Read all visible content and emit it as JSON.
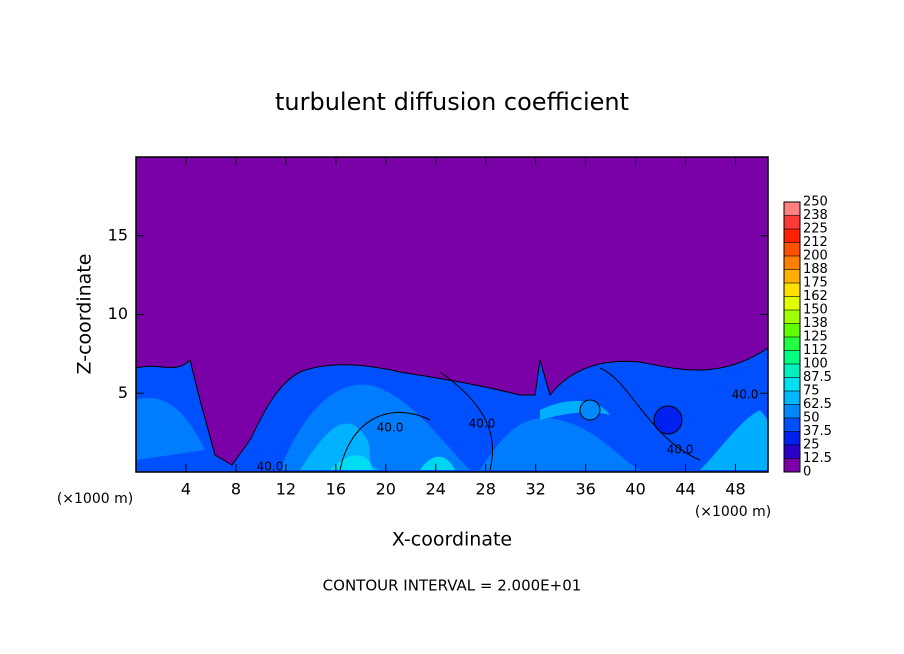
{
  "chart_data": {
    "type": "contour",
    "title": "turbulent diffusion coefficient",
    "x_label": "X-coordinate",
    "y_label": "Z-coordinate",
    "x_unit": "(×1000 m)",
    "footer": "CONTOUR INTERVAL = 2.000E+01",
    "xlim": [
      0,
      50.6
    ],
    "ylim": [
      0,
      20
    ],
    "xticks": [
      4,
      8,
      12,
      16,
      20,
      24,
      28,
      32,
      36,
      40,
      44,
      48
    ],
    "yticks": [
      5,
      10,
      15
    ],
    "background_color": "#7a00a8",
    "contour_labels": [
      "40.0",
      "40.0",
      "40.0",
      "40.0",
      "40.0"
    ],
    "levels": [
      0,
      12.5,
      25,
      37.5,
      50,
      62.5,
      75,
      87.5,
      100,
      {
        "value": 112.5,
        "label": "112"
      },
      125,
      {
        "value": 137.5,
        "label": "138"
      },
      150,
      {
        "value": 162.5,
        "label": "162"
      },
      175,
      {
        "value": 187.5,
        "label": "188"
      },
      200,
      {
        "value": 212.5,
        "label": "212"
      },
      225,
      {
        "value": 237.5,
        "label": "238"
      },
      250
    ],
    "level_colors": [
      "#7a00a8",
      "#2a00c8",
      "#0020f0",
      "#0050ff",
      "#0088ff",
      "#00b8ff",
      "#00e0f0",
      "#00f0c0",
      "#00ff80",
      "#20ff40",
      "#60ff00",
      "#a0ff00",
      "#e0ff00",
      "#ffe000",
      "#ffb000",
      "#ff8000",
      "#ff5000",
      "#ff2000",
      "#ff3838",
      "#ff8080"
    ]
  }
}
